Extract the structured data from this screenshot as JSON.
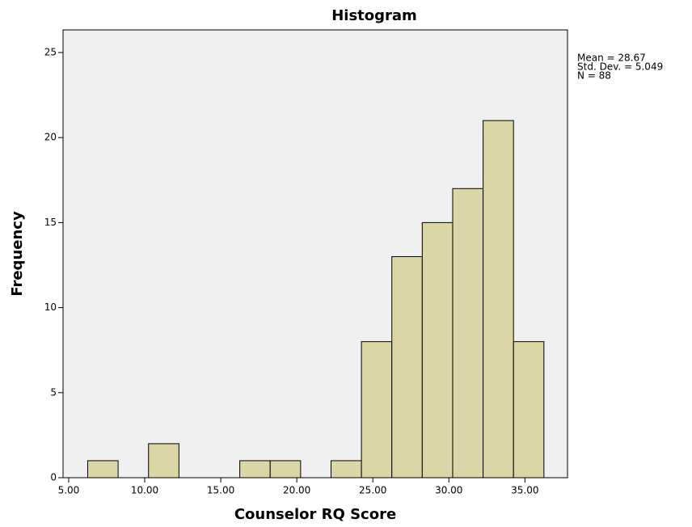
{
  "chart_data": {
    "type": "histogram",
    "title": "Histogram",
    "x_label": "Counselor RQ Score",
    "y_label": "Frequency",
    "bins": [
      6.25,
      8.25,
      10.25,
      12.25,
      14.25,
      16.25,
      18.25,
      20.25,
      22.25,
      24.25,
      26.25,
      28.25,
      30.25,
      32.25,
      34.25,
      36.25
    ],
    "values": [
      1,
      0,
      2,
      0,
      0,
      1,
      1,
      0,
      1,
      8,
      13,
      15,
      17,
      21,
      8
    ],
    "color": "#dcd5a5",
    "edge_color": "#000000",
    "xlim": [
      4.63,
      37.8
    ],
    "xticks": [
      {
        "value": 5,
        "label": "5.00"
      },
      {
        "value": 10,
        "label": "10.00"
      },
      {
        "value": 15,
        "label": "15.00"
      },
      {
        "value": 20,
        "label": "20.00"
      },
      {
        "value": 25,
        "label": "25.00"
      },
      {
        "value": 30,
        "label": "30.00"
      },
      {
        "value": 35,
        "label": "35.00"
      }
    ],
    "ylim": [
      0,
      26.33
    ],
    "yticks": [
      0,
      5,
      10,
      15,
      20,
      25
    ],
    "grid": false,
    "annotations": [
      "Mean = 28.67",
      "Std. Dev. = 5.049",
      "N = 88"
    ]
  }
}
